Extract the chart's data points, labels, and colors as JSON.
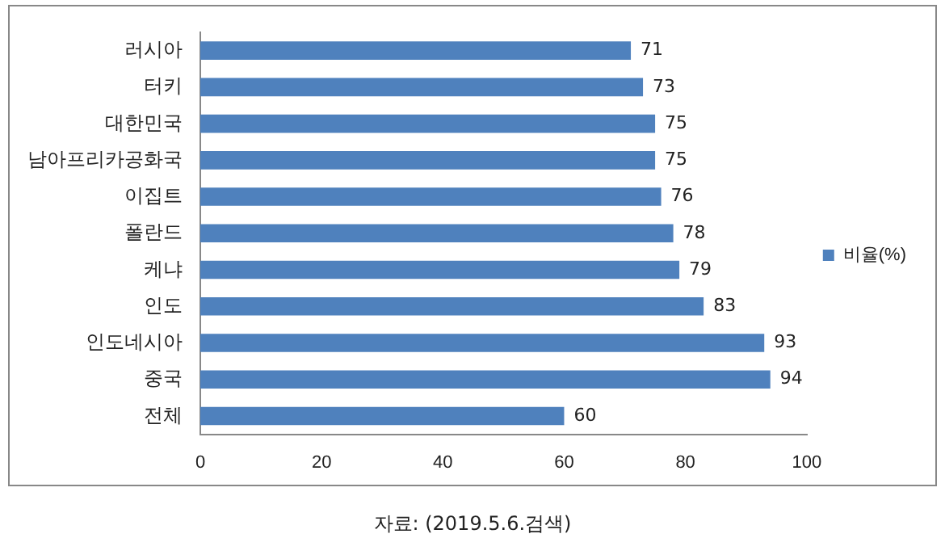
{
  "chart_data": {
    "type": "bar",
    "orientation": "horizontal",
    "categories": [
      "러시아",
      "터키",
      "대한민국",
      "남아프리카공화국",
      "이집트",
      "폴란드",
      "케냐",
      "인도",
      "인도네시아",
      "중국",
      "전체"
    ],
    "series": [
      {
        "name": "비율(%)",
        "color": "#4f81bd",
        "values": [
          71,
          73,
          75,
          75,
          76,
          78,
          79,
          83,
          93,
          94,
          60
        ]
      }
    ],
    "xlim": [
      0,
      100
    ],
    "xticks": [
      0,
      20,
      40,
      60,
      80,
      100
    ],
    "grid": false,
    "legend": "right",
    "data_labels": true,
    "annotations": [
      "자료: (2019.5.6.검색)"
    ]
  }
}
